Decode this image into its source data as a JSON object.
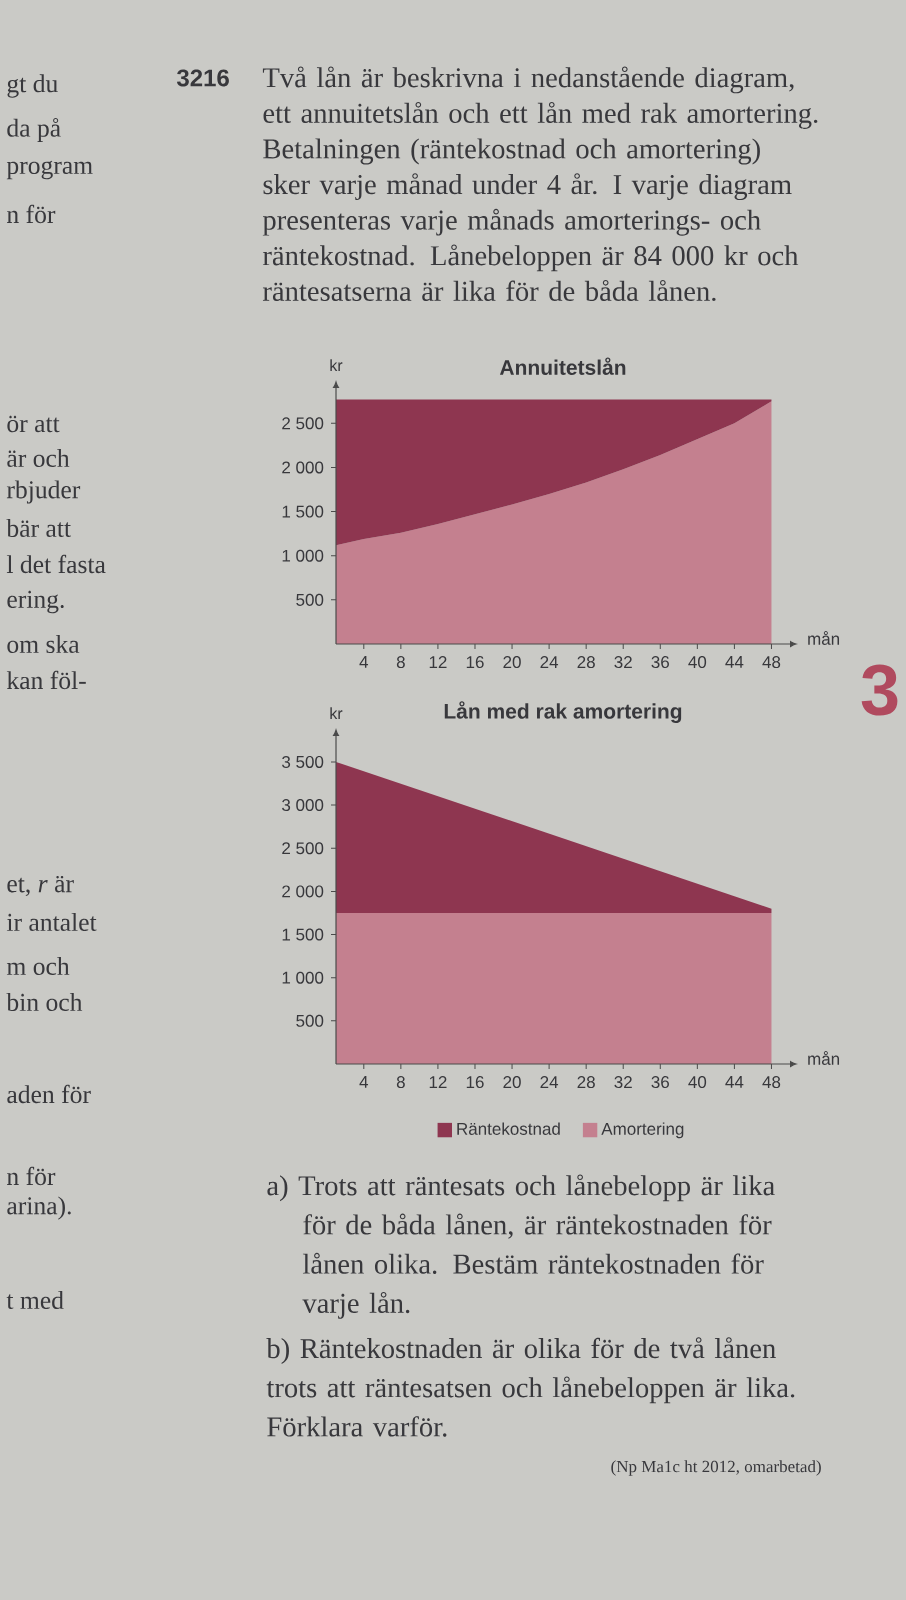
{
  "chart_data": [
    {
      "type": "other",
      "title": "3216",
      "annotations": [
        "Två lån är beskrivna i nedanstående diagram, ett annuitetslån och ett lån med rak amortering. Betalningen (räntekostnad och amortering) sker varje månad under 4 år. I varje diagram presenteras varje månads amorterings- och räntekostnad. Lånebeloppen är 84 000 kr och räntesatserna är lika för de båda lånen."
      ]
    },
    {
      "type": "area",
      "stacked": true,
      "title": "Annuitetslån",
      "xlabel": "mån",
      "ylabel": "kr",
      "x": [
        1,
        4,
        8,
        12,
        16,
        20,
        24,
        28,
        32,
        36,
        40,
        44,
        48
      ],
      "series": [
        {
          "color": "#C4808F",
          "values": [
            1120,
            1190,
            1260,
            1360,
            1470,
            1580,
            1700,
            1830,
            1980,
            2140,
            2320,
            2500,
            2750
          ]
        },
        {
          "color": "#8E3650",
          "values": [
            1650,
            1580,
            1510,
            1410,
            1300,
            1190,
            1070,
            940,
            790,
            630,
            450,
            270,
            20
          ]
        }
      ],
      "xlim": [
        1,
        50
      ],
      "ylim": [
        0,
        2900
      ],
      "xticks": [
        4,
        8,
        12,
        16,
        20,
        24,
        28,
        32,
        36,
        40,
        44,
        48
      ],
      "yticks": [
        500,
        {
          "value": 1000,
          "label": "1 000"
        },
        {
          "value": 1500,
          "label": "1 500"
        },
        {
          "value": 2000,
          "label": "2 000"
        },
        {
          "value": 2500,
          "label": "2 500"
        }
      ]
    },
    {
      "type": "area",
      "stacked": true,
      "title": "Lån med rak amortering",
      "xlabel": "mån",
      "ylabel": "kr",
      "x": [
        1,
        48
      ],
      "series": [
        {
          "name": "Amortering",
          "color": "#C4808F",
          "values": [
            1750,
            1750
          ]
        },
        {
          "name": "Räntekostnad",
          "color": "#8E3650",
          "values": [
            1750,
            50
          ]
        }
      ],
      "xlim": [
        1,
        50
      ],
      "ylim": [
        0,
        3800
      ],
      "xticks": [
        4,
        8,
        12,
        16,
        20,
        24,
        28,
        32,
        36,
        40,
        44,
        48
      ],
      "yticks": [
        500,
        {
          "value": 1000,
          "label": "1 000"
        },
        {
          "value": 1500,
          "label": "1 500"
        },
        {
          "value": 2000,
          "label": "2 000"
        },
        {
          "value": 2500,
          "label": "2 500"
        },
        {
          "value": 3000,
          "label": "3 000"
        },
        {
          "value": 3500,
          "label": "3 500"
        }
      ],
      "legend": "bottom"
    },
    {
      "type": "other",
      "annotations": [
        "a) Trots att räntesats och lånebelopp är lika för de båda lånen, är räntekostnaden för lånen olika. Bestäm räntekostnaden för varje lån.",
        "b) Räntekostnaden är olika för de två lånen trots att räntesatsen och lånebeloppen är lika. Förklara varför.",
        "(Np Ma1c ht 2012, omarbetad)"
      ]
    },
    {
      "type": "other",
      "annotations": [
        "gt du",
        "da på",
        "program",
        "n för",
        "ör att",
        "är och",
        "rbjuder",
        "bär att",
        "l det fasta",
        "ering.",
        "om ska",
        "kan föl-",
        "et, *r* är",
        "ir antalet",
        "m och",
        "bin och",
        "aden för",
        "n för",
        "arina).",
        "t med"
      ]
    },
    {
      "type": "other",
      "annotations": [
        "3"
      ]
    }
  ]
}
